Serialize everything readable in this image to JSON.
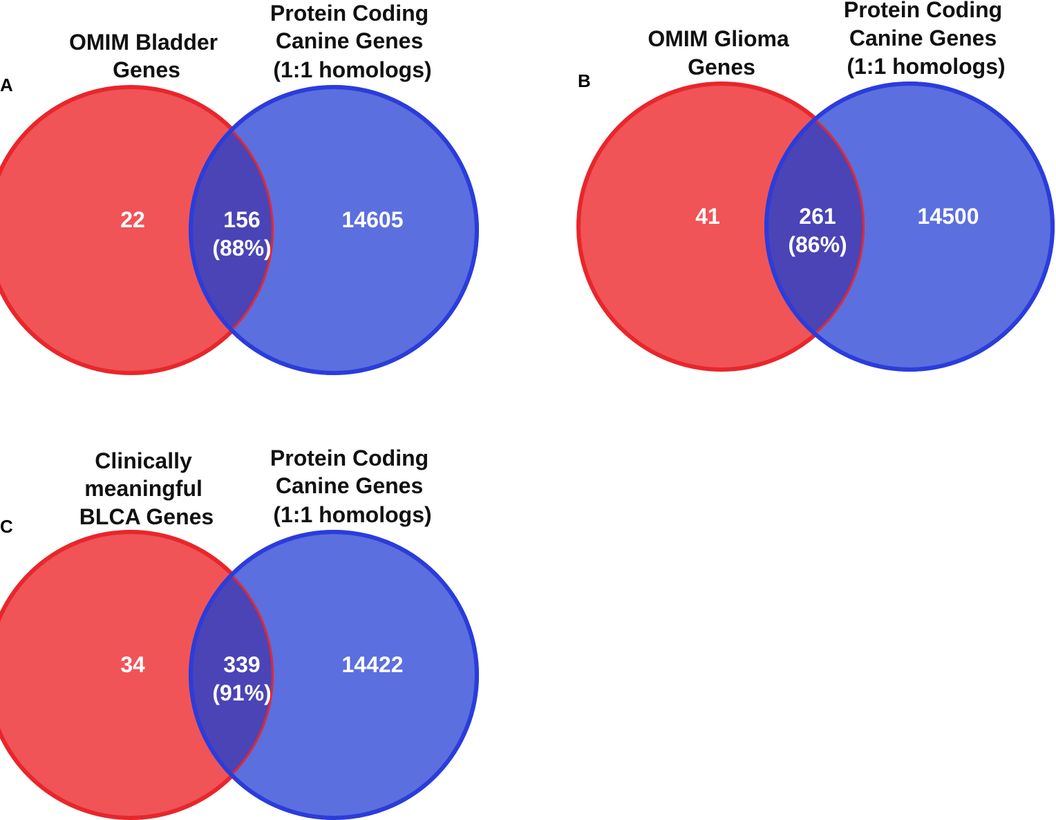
{
  "figure": {
    "colors": {
      "left_fill": "#f05457",
      "left_stroke": "#e8262b",
      "right_fill": "#5b6fdf",
      "right_stroke": "#2b3cdb",
      "overlap_fill": "#4a44b6",
      "count_text": "#ffffff",
      "label_text": "#111111"
    },
    "panels": [
      {
        "letter": "A",
        "left_label": [
          "OMIM Bladder",
          "Genes"
        ],
        "right_label": [
          "Protein Coding",
          "Canine Genes",
          "(1:1 homologs)"
        ],
        "left_only": "22",
        "overlap": "156",
        "overlap_pct": "(88%)",
        "right_only": "14605"
      },
      {
        "letter": "B",
        "left_label": [
          "OMIM Glioma",
          "Genes"
        ],
        "right_label": [
          "Protein Coding",
          "Canine Genes",
          "(1:1 homologs)"
        ],
        "left_only": "41",
        "overlap": "261",
        "overlap_pct": "(86%)",
        "right_only": "14500"
      },
      {
        "letter": "C",
        "left_label": [
          "Clinically",
          "meaningful",
          "BLCA Genes"
        ],
        "right_label": [
          "Protein Coding",
          "Canine Genes",
          "(1:1 homologs)"
        ],
        "left_only": "34",
        "overlap": "339",
        "overlap_pct": "(91%)",
        "right_only": "14422"
      }
    ]
  }
}
